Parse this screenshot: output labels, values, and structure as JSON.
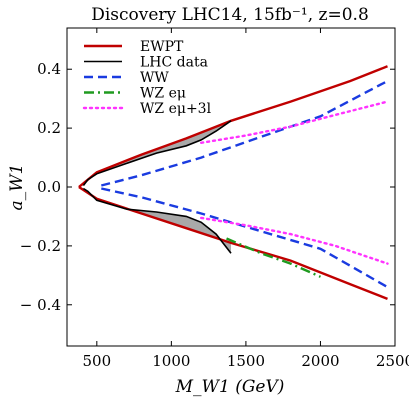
{
  "chart_data": {
    "type": "line",
    "title": "Discovery LHC14, 15fb⁻¹, z=0.8",
    "xlabel": "M_W1 (GeV)",
    "ylabel": "a_W1",
    "xlim": [
      300,
      2500
    ],
    "ylim": [
      -0.54,
      0.54
    ],
    "xticks": [
      500,
      1000,
      1500,
      2000,
      2500
    ],
    "yticks": [
      -0.4,
      -0.2,
      0.0,
      0.2,
      0.4
    ],
    "legend": "top-left",
    "series": [
      {
        "name": "EWPT",
        "color": "#c00000",
        "style": "solid",
        "branches": [
          [
            [
              380,
              0
            ],
            [
              500,
              0.05
            ],
            [
              800,
              0.11
            ],
            [
              1100,
              0.165
            ],
            [
              1400,
              0.225
            ],
            [
              1800,
              0.29
            ],
            [
              2200,
              0.36
            ],
            [
              2450,
              0.41
            ]
          ],
          [
            [
              380,
              0
            ],
            [
              500,
              -0.04
            ],
            [
              800,
              -0.09
            ],
            [
              1100,
              -0.14
            ],
            [
              1400,
              -0.19
            ],
            [
              1800,
              -0.25
            ],
            [
              2200,
              -0.33
            ],
            [
              2450,
              -0.38
            ]
          ]
        ]
      },
      {
        "name": "LHC data",
        "color": "#000000",
        "style": "solid",
        "branches": [
          [
            [
              410,
              0.005
            ],
            [
              440,
              0.025
            ],
            [
              500,
              0.045
            ],
            [
              700,
              0.08
            ],
            [
              900,
              0.115
            ],
            [
              1100,
              0.14
            ],
            [
              1200,
              0.16
            ],
            [
              1300,
              0.19
            ],
            [
              1400,
              0.225
            ]
          ],
          [
            [
              410,
              -0.005
            ],
            [
              440,
              -0.015
            ],
            [
              500,
              -0.045
            ],
            [
              700,
              -0.075
            ],
            [
              900,
              -0.085
            ],
            [
              1100,
              -0.1
            ],
            [
              1200,
              -0.12
            ],
            [
              1300,
              -0.16
            ],
            [
              1400,
              -0.225
            ]
          ]
        ]
      },
      {
        "name": "WW",
        "color": "#1a3be0",
        "style": "dashed",
        "branches": [
          [
            [
              530,
              0.005
            ],
            [
              800,
              0.04
            ],
            [
              1200,
              0.1
            ],
            [
              1600,
              0.17
            ],
            [
              2000,
              0.24
            ],
            [
              2450,
              0.36
            ]
          ],
          [
            [
              530,
              -0.005
            ],
            [
              800,
              -0.035
            ],
            [
              1200,
              -0.09
            ],
            [
              1600,
              -0.15
            ],
            [
              2000,
              -0.21
            ],
            [
              2450,
              -0.34
            ]
          ]
        ]
      },
      {
        "name": "WZ eμ",
        "color": "#1f9a1f",
        "style": "dashdot",
        "branches": [
          [
            [
              1370,
              -0.175
            ],
            [
              1600,
              -0.225
            ],
            [
              1800,
              -0.26
            ],
            [
              2000,
              -0.305
            ]
          ]
        ]
      },
      {
        "name": "WZ eμ+3l",
        "color": "#ff33ff",
        "style": "dotted",
        "branches": [
          [
            [
              1200,
              0.15
            ],
            [
              1500,
              0.175
            ],
            [
              1800,
              0.205
            ],
            [
              2100,
              0.245
            ],
            [
              2450,
              0.29
            ]
          ],
          [
            [
              1200,
              -0.105
            ],
            [
              1500,
              -0.13
            ],
            [
              1800,
              -0.16
            ],
            [
              2100,
              -0.2
            ],
            [
              2450,
              -0.26
            ]
          ]
        ]
      }
    ]
  }
}
